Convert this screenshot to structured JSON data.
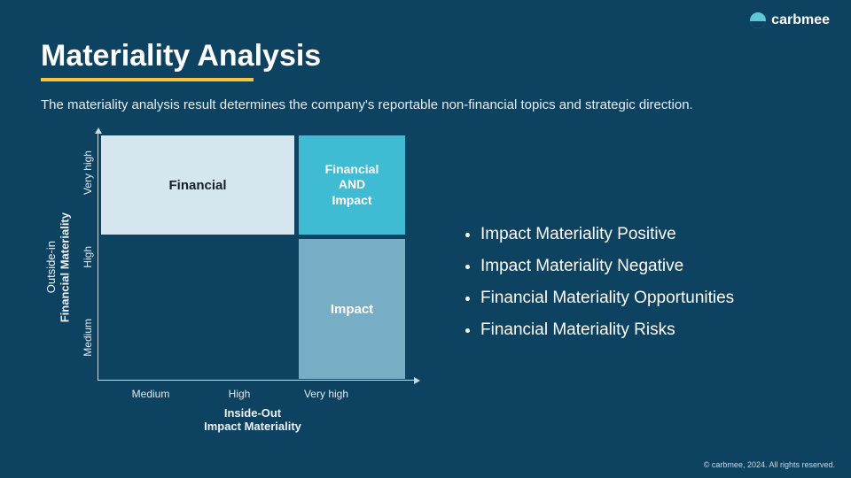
{
  "brand": {
    "name": "carbmee"
  },
  "title": "Materiality Analysis",
  "subtitle": "The materiality analysis result determines the company's reportable non-financial topics and strategic direction.",
  "chart": {
    "type": "quadrant",
    "background_color": "#0d4261",
    "axis_color": "#cfd8de",
    "y_axis": {
      "label_line1": "Outside-in",
      "label_line2": "Financial Materiality",
      "ticks": [
        "Medium",
        "High",
        "Very high"
      ]
    },
    "x_axis": {
      "label_line1": "Inside-Out",
      "label_line2": "Impact Materiality",
      "ticks": [
        "Medium",
        "High",
        "Very high"
      ]
    },
    "quadrants": {
      "top_left": {
        "label": "Financial",
        "bg": "#d6e6ee",
        "fg": "#15202a"
      },
      "top_right": {
        "label": "Financial\nAND\nImpact",
        "bg": "#3fbcd4",
        "fg": "#ffffff"
      },
      "bottom_right": {
        "label": "Impact",
        "bg": "#78aec5",
        "fg": "#ffffff"
      }
    }
  },
  "bullets": [
    "Impact Materiality Positive",
    "Impact Materiality Negative",
    "Financial Materiality Opportunities",
    "Financial Materiality Risks"
  ],
  "copyright": "© carbmee, 2024. All rights reserved."
}
